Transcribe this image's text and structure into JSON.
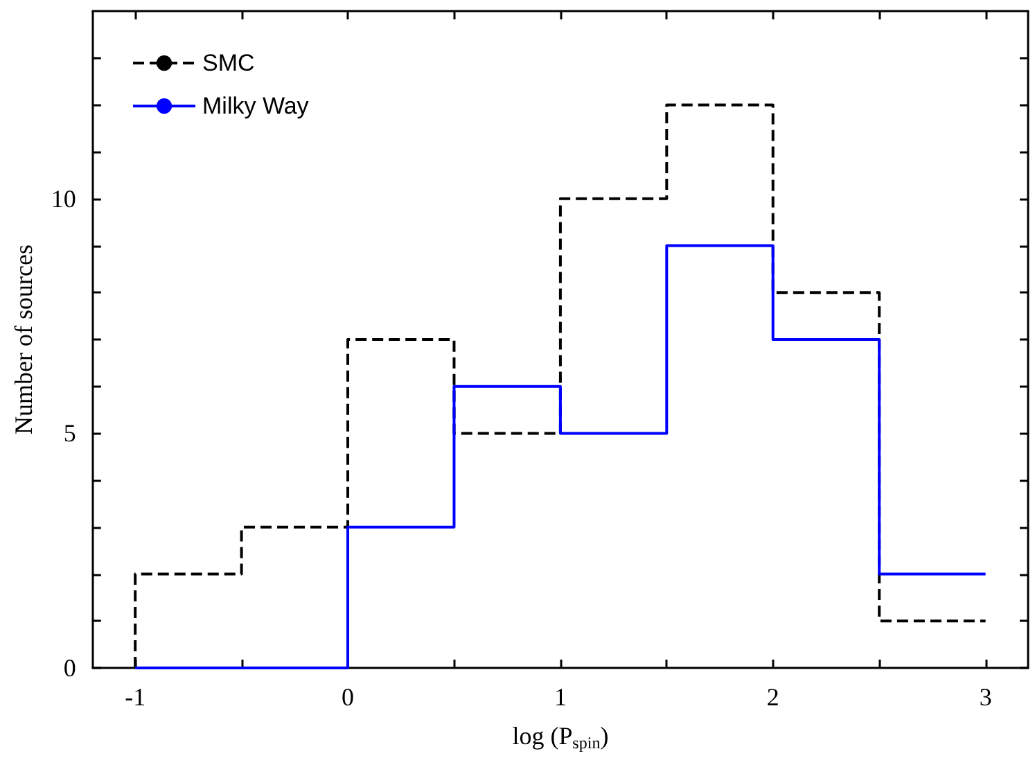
{
  "chart_data": {
    "type": "histogram",
    "xlabel": "log (P$_{spin}$)",
    "ylabel": "Number of sources",
    "bins": [
      -1,
      -0.5,
      0,
      0.5,
      1,
      1.5,
      2,
      2.5,
      3
    ],
    "series": [
      {
        "name": "SMC",
        "color": "#000000",
        "line_style": "dashed",
        "values": [
          2,
          3,
          7,
          5,
          10,
          12,
          8,
          1
        ]
      },
      {
        "name": "Milky Way",
        "color": "#0000ff",
        "line_style": "solid",
        "values": [
          0,
          0,
          3,
          6,
          5,
          9,
          7,
          2
        ]
      }
    ],
    "xlim": [
      -1.2,
      3.2
    ],
    "xticks": [
      -1,
      {
        "value": -0.5,
        "label": null
      },
      0,
      {
        "value": 0.5,
        "label": null
      },
      1,
      {
        "value": 1.5,
        "label": null
      },
      2,
      {
        "value": 2.5,
        "label": null
      },
      3
    ],
    "ylim": [
      0,
      14
    ],
    "yticks": [
      0,
      {
        "value": 1,
        "label": null
      },
      {
        "value": 2,
        "label": null
      },
      {
        "value": 3,
        "label": null
      },
      {
        "value": 4,
        "label": null
      },
      5,
      {
        "value": 6,
        "label": null
      },
      {
        "value": 7,
        "label": null
      },
      {
        "value": 8,
        "label": null
      },
      {
        "value": 9,
        "label": null
      },
      10,
      {
        "value": 11,
        "label": null
      },
      {
        "value": 12,
        "label": null
      },
      {
        "value": 13,
        "label": null
      }
    ],
    "grid": false,
    "legend": "top left"
  }
}
